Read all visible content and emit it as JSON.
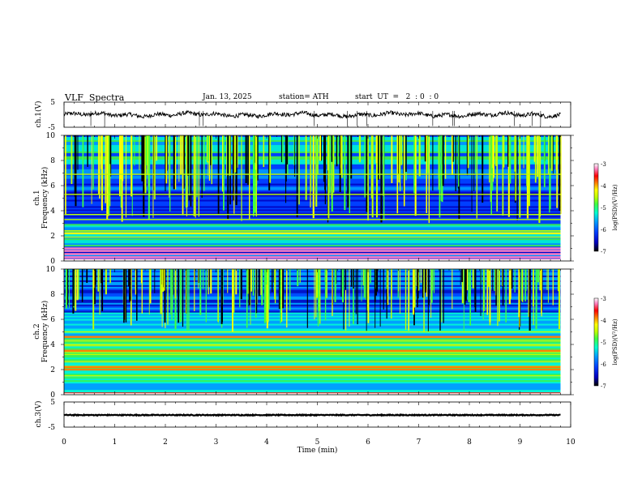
{
  "header": {
    "title": "VLF  Spectra",
    "date": "Jan. 13, 2025",
    "station": "station= ATH",
    "start": "start  UT  =   2  : 0  : 0"
  },
  "chart_data": [
    {
      "type": "line",
      "name": "ch1-waveform",
      "ylabel": "ch.1(V)",
      "ylim": [
        -5,
        5
      ],
      "yticks": [
        "5",
        "-5"
      ],
      "x_range_min": [
        0,
        9.8
      ],
      "description_level": 0,
      "color": "#000000"
    },
    {
      "type": "heatmap",
      "name": "ch1-spectrogram",
      "ylabel_top": "ch.1",
      "ylabel": "Frequency  (kHz)",
      "ylim": [
        0,
        10
      ],
      "yticks": [
        "0",
        "2",
        "4",
        "6",
        "8",
        "10"
      ],
      "x_range_min": [
        0,
        9.8
      ],
      "colorbar": {
        "label": "log(PSD)(V²/Hz)",
        "range": [
          -7,
          -3
        ],
        "ticks": [
          "-3",
          "-4",
          "-5",
          "-6",
          "-7"
        ]
      },
      "strong_bands_khz": [
        0.1,
        0.3,
        0.55,
        0.8,
        1.0,
        2.2
      ],
      "medium_bands_khz": [
        1.9,
        2.4,
        3.3,
        3.7,
        5.3,
        6.9
      ]
    },
    {
      "type": "heatmap",
      "name": "ch2-spectrogram",
      "ylabel_top": "ch.2",
      "ylabel": "Frequency  (kHz)",
      "ylim": [
        0,
        10
      ],
      "yticks": [
        "0",
        "2",
        "4",
        "6",
        "8",
        "10"
      ],
      "x_range_min": [
        0,
        9.8
      ],
      "colorbar": {
        "label": "log(PSD)(V²/Hz)",
        "range": [
          -7,
          -3
        ],
        "ticks": [
          "-3",
          "-4",
          "-5",
          "-6",
          "-7"
        ]
      },
      "strong_bands_khz": [
        0.1,
        2.0,
        2.2,
        3.5,
        4.6
      ],
      "medium_bands_khz": [
        1.5,
        3.2,
        4.0,
        5.0
      ]
    },
    {
      "type": "line",
      "name": "ch3-waveform",
      "ylabel": "ch.3(V)",
      "ylim": [
        -5,
        5
      ],
      "yticks": [
        "5",
        "-5"
      ],
      "x_range_min": [
        0,
        9.8
      ],
      "level": -0.2,
      "color": "#000000"
    }
  ],
  "x_axis": {
    "label": "Time  (min)",
    "range": [
      0,
      10
    ],
    "ticks": [
      "0",
      "1",
      "2",
      "3",
      "4",
      "5",
      "6",
      "7",
      "8",
      "9",
      "10"
    ]
  },
  "colors": {
    "palette": [
      "#000000",
      "#0000c0",
      "#0040ff",
      "#00a0ff",
      "#00ffd0",
      "#40ff40",
      "#c0ff00",
      "#ffff00",
      "#ff8000",
      "#ff0000",
      "#ff80c0",
      "#ffffff"
    ]
  }
}
